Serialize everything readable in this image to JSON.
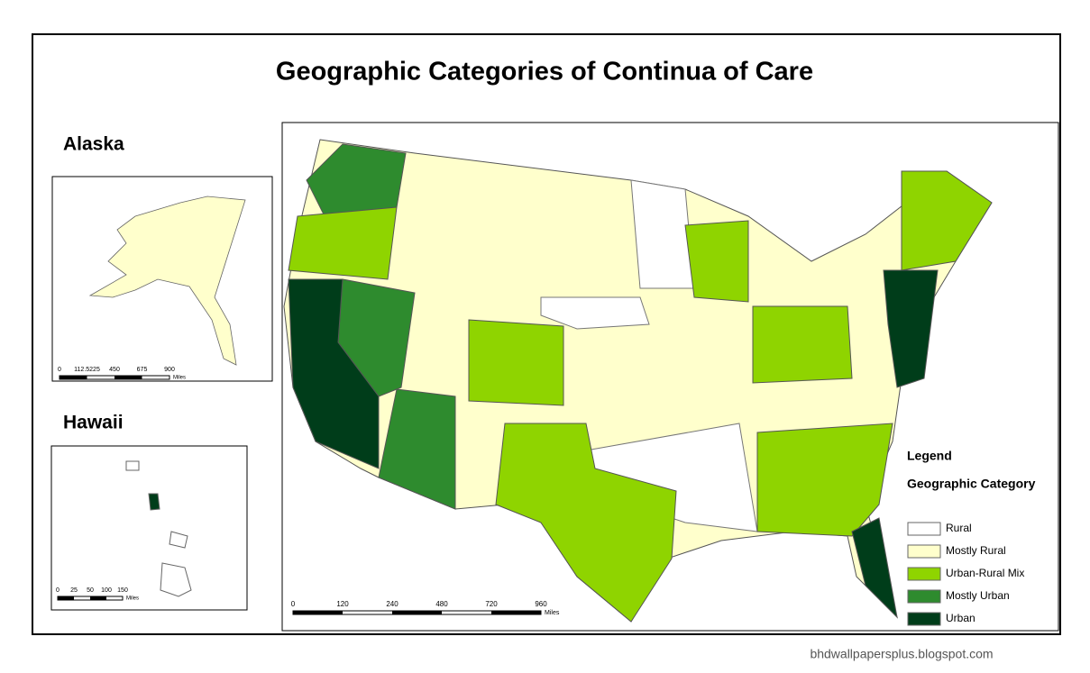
{
  "title": "Geographic Categories of Continua of Care",
  "alaska": {
    "label": "Alaska",
    "scale_labels": [
      "0",
      "112.5225",
      "450",
      "675",
      "900"
    ],
    "scale_unit": "Miles"
  },
  "hawaii": {
    "label": "Hawaii",
    "scale_labels": [
      "0",
      "25",
      "50",
      "100",
      "150"
    ],
    "scale_unit": "Miles"
  },
  "main_scale": {
    "labels": [
      "0",
      "120",
      "240",
      "480",
      "720",
      "960"
    ],
    "unit": "Miles"
  },
  "legend": {
    "title": "Legend",
    "subtitle": "Geographic Category",
    "items": [
      {
        "name": "Rural",
        "color": "#ffffff"
      },
      {
        "name": "Mostly Rural",
        "color": "#ffffcc"
      },
      {
        "name": "Urban-Rural Mix",
        "color": "#8fd400"
      },
      {
        "name": "Mostly Urban",
        "color": "#2e8b2e"
      },
      {
        "name": "Urban",
        "color": "#003d1a"
      }
    ]
  },
  "watermark": "bhdwallpapersplus.blogspot.com"
}
